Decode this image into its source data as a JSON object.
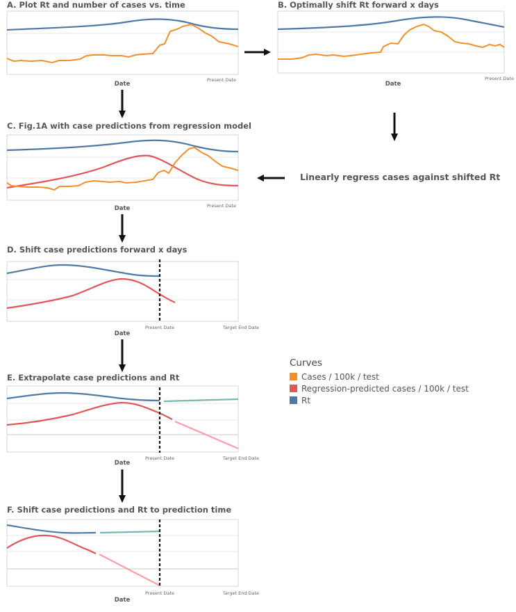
{
  "panels": {
    "a": {
      "title": "A. Plot Rt and number of cases vs. time",
      "xlabel": "Date",
      "present": "Present Date"
    },
    "b": {
      "title": "B. Optimally shift Rt forward x days",
      "xlabel": "Date",
      "present": "Present Date"
    },
    "c": {
      "title": "C. Fig.1A with case predictions from regression model",
      "xlabel": "Date",
      "present": "Present Date"
    },
    "d": {
      "title": "D. Shift case predictions forward x days",
      "xlabel": "Date",
      "present": "Present Date",
      "target": "Target End Date"
    },
    "e": {
      "title": "E. Extrapolate case predictions and Rt",
      "xlabel": "Date",
      "present": "Present Date",
      "target": "Target End Date"
    },
    "f": {
      "title": "F. Shift case predictions and Rt to prediction time",
      "xlabel": "Date",
      "present": "Present Date",
      "target": "Target End Date"
    }
  },
  "regress_step": "Linearly regress cases against shifted Rt",
  "legend": {
    "title": "Curves",
    "items": [
      {
        "label": "Cases / 100k / test",
        "color": "#f28e2b"
      },
      {
        "label": "Regression-predicted cases / 100k / test",
        "color": "#e15759"
      },
      {
        "label": "Rt",
        "color": "#4e79a7"
      }
    ]
  },
  "colors": {
    "cases": "#f28e2b",
    "predicted": "#e15759",
    "rt": "#4e79a7",
    "extrapolated_rt": "#76b7b2",
    "extrapolated_cases": "#ff9da7"
  }
}
